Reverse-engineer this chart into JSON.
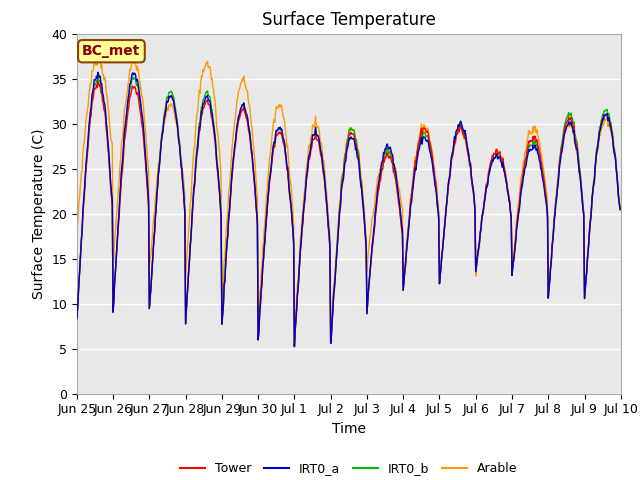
{
  "title": "Surface Temperature",
  "ylabel": "Surface Temperature (C)",
  "xlabel": "Time",
  "ylim": [
    0,
    40
  ],
  "yticks": [
    0,
    5,
    10,
    15,
    20,
    25,
    30,
    35,
    40
  ],
  "annotation": "BC_met",
  "background_color": "#e8e8e8",
  "legend_entries": [
    "Tower",
    "IRT0_a",
    "IRT0_b",
    "Arable"
  ],
  "legend_colors": [
    "#ff0000",
    "#0000cd",
    "#00bb00",
    "#ff9900"
  ],
  "title_fontsize": 12,
  "label_fontsize": 10,
  "tick_fontsize": 9,
  "x_tick_labels": [
    "Jun 25",
    "Jun 26",
    "Jun 27",
    "Jun 28",
    "Jun 29",
    "Jun 30",
    "Jul 1",
    "Jul 2",
    "Jul 3",
    "Jul 4",
    "Jul 5",
    "Jul 6",
    "Jul 7",
    "Jul 8",
    "Jul 9",
    "Jul 10"
  ],
  "n_pts_per_day": 48,
  "n_days": 15,
  "day_peaks": [
    34.5,
    34.0,
    33.0,
    32.5,
    31.5,
    29.0,
    28.5,
    29.0,
    26.5,
    29.5,
    29.5,
    27.0,
    28.5,
    30.5,
    31.0
  ],
  "day_mins": [
    8.0,
    9.0,
    9.0,
    8.0,
    7.5,
    6.0,
    5.5,
    5.5,
    9.5,
    11.5,
    12.0,
    13.5,
    13.0,
    10.5,
    10.5
  ],
  "arable_peaks": [
    37.2,
    36.8,
    32.0,
    36.7,
    34.8,
    32.0,
    30.0,
    29.5,
    27.0,
    29.8,
    29.5,
    27.0,
    29.5,
    29.8,
    30.5
  ],
  "arable_mins": [
    18.0,
    14.0,
    13.5,
    13.0,
    10.0,
    7.5,
    6.5,
    6.5,
    14.5,
    12.0,
    12.5,
    13.0,
    13.5,
    11.0,
    11.0
  ],
  "irt0a_peak_offset": [
    1.0,
    1.5,
    0.0,
    0.5,
    0.5,
    0.5,
    0.5,
    -0.5,
    1.0,
    -1.0,
    0.5,
    -0.5,
    -1.0,
    -0.5,
    0.0
  ],
  "irt0b_peak_offset": [
    0.5,
    1.0,
    0.5,
    1.0,
    0.5,
    0.5,
    0.5,
    0.5,
    0.5,
    -0.5,
    0.5,
    -0.5,
    -0.5,
    0.5,
    0.5
  ]
}
